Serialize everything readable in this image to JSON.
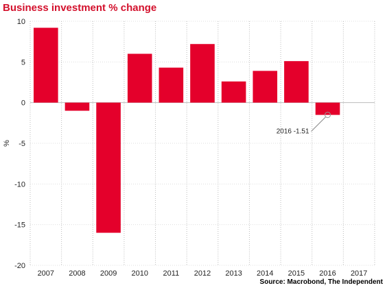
{
  "chart_data": {
    "type": "bar",
    "title": "Business investment % change",
    "ylabel": "%",
    "xlabel": "",
    "categories": [
      "2007",
      "2008",
      "2009",
      "2010",
      "2011",
      "2012",
      "2013",
      "2014",
      "2015",
      "2016",
      "2017"
    ],
    "values": [
      9.2,
      -1.0,
      -16.0,
      6.0,
      4.3,
      7.2,
      2.6,
      3.9,
      5.1,
      -1.51,
      null
    ],
    "ylim": [
      -20,
      10
    ],
    "yticks": [
      10,
      5,
      0,
      -5,
      -10,
      -15,
      -20
    ],
    "grid": true,
    "annotation": {
      "category": "2016",
      "text": "2016 -1.51"
    },
    "source": "Source: Macrobond, The Independent",
    "bar_color": "#e4002b"
  }
}
